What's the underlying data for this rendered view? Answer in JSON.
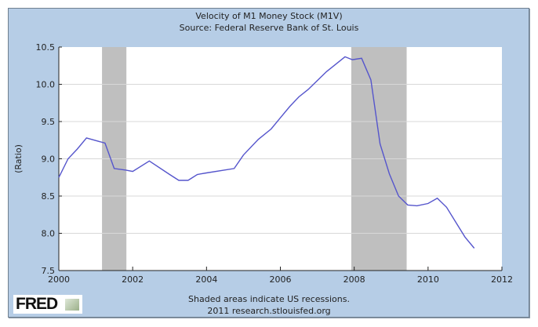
{
  "chart_data": {
    "type": "line",
    "title": "Velocity of M1 Money Stock (M1V)",
    "subtitle": "Source: Federal Reserve Bank of St. Louis",
    "xlabel": "",
    "ylabel": "(Ratio)",
    "xlim": [
      2000,
      2012
    ],
    "ylim": [
      7.5,
      10.5
    ],
    "xticks": [
      "2000",
      "2002",
      "2004",
      "2006",
      "2008",
      "2010",
      "2012"
    ],
    "yticks": [
      "7.5",
      "8.0",
      "8.5",
      "9.0",
      "9.5",
      "10.0",
      "10.5"
    ],
    "grid": "horizontal",
    "recessions": [
      [
        2001.17,
        2001.83
      ],
      [
        2007.92,
        2009.42
      ]
    ],
    "series": [
      {
        "name": "M1V",
        "color": "#5555cc",
        "x": [
          2000.0,
          2000.25,
          2000.5,
          2000.75,
          2001.25,
          2001.5,
          2001.8,
          2002.0,
          2002.45,
          2003.0,
          2003.25,
          2003.5,
          2003.75,
          2004.0,
          2004.75,
          2005.0,
          2005.4,
          2005.75,
          2006.0,
          2006.25,
          2006.5,
          2006.75,
          2007.0,
          2007.25,
          2007.5,
          2007.75,
          2007.95,
          2008.2,
          2008.45,
          2008.7,
          2008.95,
          2009.2,
          2009.45,
          2009.7,
          2010.0,
          2010.25,
          2010.5,
          2010.75,
          2011.0,
          2011.25
        ],
        "values": [
          8.75,
          9.0,
          9.13,
          9.28,
          9.21,
          8.87,
          8.85,
          8.83,
          8.97,
          8.79,
          8.71,
          8.71,
          8.79,
          8.81,
          8.87,
          9.05,
          9.26,
          9.4,
          9.55,
          9.7,
          9.83,
          9.93,
          10.05,
          10.17,
          10.27,
          10.37,
          10.33,
          10.35,
          10.06,
          9.2,
          8.8,
          8.5,
          8.38,
          8.37,
          8.4,
          8.47,
          8.35,
          8.15,
          7.95,
          7.8
        ]
      }
    ],
    "footnote": "Shaded areas indicate US recessions.",
    "footnote2": "2011 research.stlouisfed.org",
    "logo": "FRED"
  }
}
